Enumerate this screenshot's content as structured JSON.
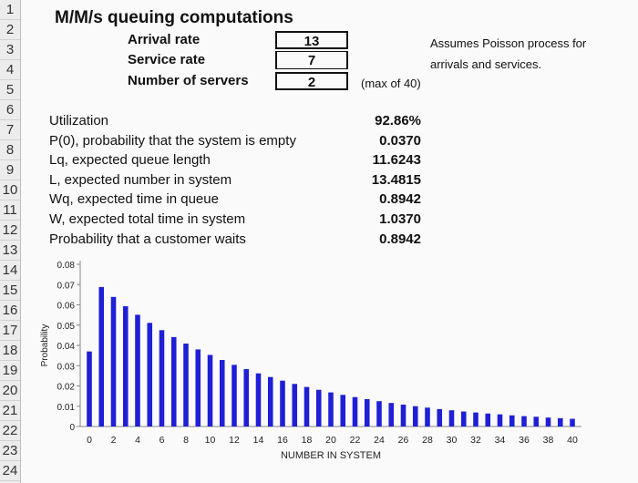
{
  "rows": [
    "1",
    "2",
    "3",
    "4",
    "5",
    "6",
    "7",
    "8",
    "9",
    "10",
    "11",
    "12",
    "13",
    "14",
    "15",
    "16",
    "17",
    "18",
    "19",
    "20",
    "21",
    "22",
    "23",
    "24"
  ],
  "title": "M/M/s queuing computations",
  "inputs": {
    "arrival_label": "Arrival rate",
    "arrival_value": "13",
    "service_label": "Service rate",
    "service_value": "7",
    "servers_label": "Number of servers",
    "servers_value": "2",
    "servers_note": "(max of 40)"
  },
  "assumption": {
    "line1": "Assumes Poisson process for",
    "line2": "arrivals and services."
  },
  "results": [
    {
      "label": "Utilization",
      "value": "92.86%"
    },
    {
      "label": "P(0), probability that the system is empty",
      "value": "0.0370"
    },
    {
      "label": "Lq, expected queue length",
      "value": "11.6243"
    },
    {
      "label": "L, expected number in system",
      "value": "13.4815"
    },
    {
      "label": "Wq, expected time in queue",
      "value": "0.8942"
    },
    {
      "label": "W, expected total time in system",
      "value": "1.0370"
    },
    {
      "label": "Probability that a customer waits",
      "value": "0.8942"
    }
  ],
  "colors": {
    "bar": "#1f1fd6"
  },
  "chart_data": {
    "type": "bar",
    "xlabel": "NUMBER IN SYSTEM",
    "ylabel": "Probability",
    "ylim": [
      0,
      0.08
    ],
    "yticks": [
      "0",
      "0.01",
      "0.02",
      "0.03",
      "0.04",
      "0.05",
      "0.06",
      "0.07",
      "0.08"
    ],
    "xticks": [
      "0",
      "2",
      "4",
      "6",
      "8",
      "10",
      "12",
      "14",
      "16",
      "18",
      "20",
      "22",
      "24",
      "26",
      "28",
      "30",
      "32",
      "34",
      "36",
      "38",
      "40"
    ],
    "x": [
      0,
      1,
      2,
      3,
      4,
      5,
      6,
      7,
      8,
      9,
      10,
      11,
      12,
      13,
      14,
      15,
      16,
      17,
      18,
      19,
      20,
      21,
      22,
      23,
      24,
      25,
      26,
      27,
      28,
      29,
      30,
      31,
      32,
      33,
      34,
      35,
      36,
      37,
      38,
      39,
      40
    ],
    "values": [
      0.037,
      0.0688,
      0.0639,
      0.0593,
      0.0551,
      0.0511,
      0.0475,
      0.0441,
      0.0409,
      0.038,
      0.0353,
      0.0328,
      0.0304,
      0.0283,
      0.0262,
      0.0244,
      0.0226,
      0.021,
      0.0195,
      0.0181,
      0.0168,
      0.0156,
      0.0145,
      0.0135,
      0.0125,
      0.0116,
      0.0108,
      0.01,
      0.0093,
      0.0086,
      0.008,
      0.0074,
      0.0069,
      0.0064,
      0.006,
      0.0055,
      0.0051,
      0.0048,
      0.0044,
      0.0041,
      0.0038
    ]
  }
}
